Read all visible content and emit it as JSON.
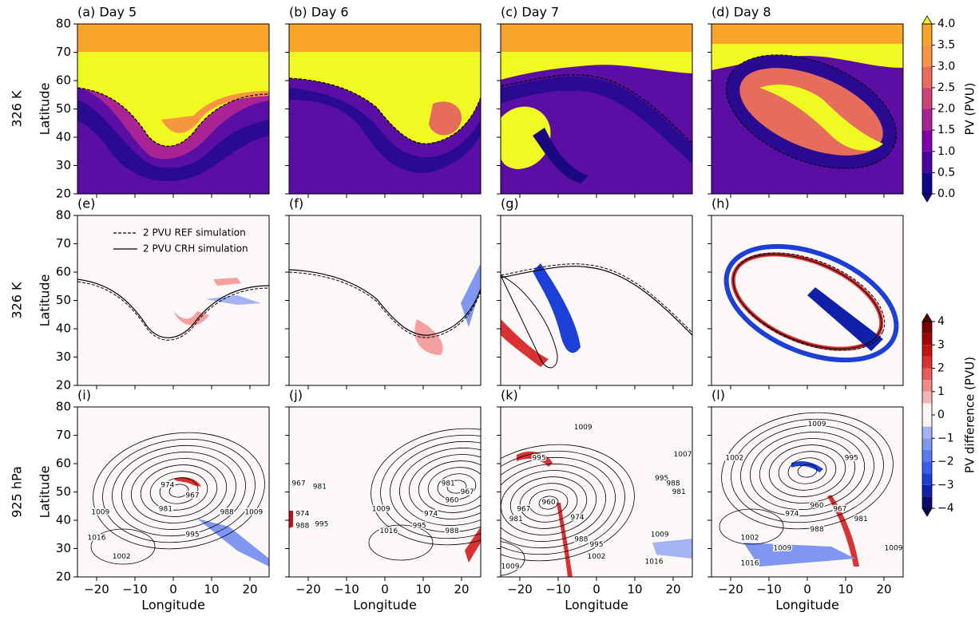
{
  "chart_data": [
    {
      "type": "contour",
      "title": "(a) Day 5",
      "ylabel": "Latitude",
      "xlim": [
        -25,
        25
      ],
      "ylim": [
        20,
        80
      ],
      "xticks": [
        {
          "value": -20,
          "label": "−20"
        },
        {
          "value": -10,
          "label": "−10"
        },
        0,
        10,
        20
      ],
      "yticks": [
        20,
        30,
        40,
        50,
        60,
        70,
        80
      ]
    },
    {
      "type": "contour",
      "title": "(b) Day 6",
      "xlim": [
        -25,
        25
      ],
      "ylim": [
        20,
        80
      ],
      "xticks": [
        {
          "value": -20,
          "label": "−20"
        },
        {
          "value": -10,
          "label": "−10"
        },
        0,
        10,
        20
      ],
      "yticks": [
        20,
        30,
        40,
        50,
        60,
        70,
        80
      ]
    },
    {
      "type": "contour",
      "title": "(c) Day 7",
      "xlim": [
        -25,
        25
      ],
      "ylim": [
        20,
        80
      ],
      "xticks": [
        {
          "value": -20,
          "label": "−20"
        },
        {
          "value": -10,
          "label": "−10"
        },
        0,
        10,
        20
      ],
      "yticks": [
        20,
        30,
        40,
        50,
        60,
        70,
        80
      ]
    },
    {
      "type": "contour",
      "title": "(d) Day 8",
      "xlim": [
        -25,
        25
      ],
      "ylim": [
        20,
        80
      ],
      "xticks": [
        {
          "value": -20,
          "label": "−20"
        },
        {
          "value": -10,
          "label": "−10"
        },
        0,
        10,
        20
      ],
      "yticks": [
        20,
        30,
        40,
        50,
        60,
        70,
        80
      ]
    },
    {
      "type": "contour",
      "title": "(e)",
      "ylabel": "Latitude",
      "xlim": [
        -25,
        25
      ],
      "ylim": [
        20,
        80
      ],
      "xticks": [
        {
          "value": -20,
          "label": "−20"
        },
        {
          "value": -10,
          "label": "−10"
        },
        0,
        10,
        20
      ],
      "yticks": [
        20,
        30,
        40,
        50,
        60,
        70,
        80
      ],
      "legend": [
        {
          "name": "2 PVU REF simulation",
          "style": "dashed"
        },
        {
          "name": "2 PVU CRH simulation",
          "style": "solid"
        }
      ]
    },
    {
      "type": "contour",
      "title": "(f)",
      "xlim": [
        -25,
        25
      ],
      "ylim": [
        20,
        80
      ],
      "xticks": [
        {
          "value": -20,
          "label": "−20"
        },
        {
          "value": -10,
          "label": "−10"
        },
        0,
        10,
        20
      ],
      "yticks": [
        20,
        30,
        40,
        50,
        60,
        70,
        80
      ]
    },
    {
      "type": "contour",
      "title": "(g)",
      "xlim": [
        -25,
        25
      ],
      "ylim": [
        20,
        80
      ],
      "xticks": [
        {
          "value": -20,
          "label": "−20"
        },
        {
          "value": -10,
          "label": "−10"
        },
        0,
        10,
        20
      ],
      "yticks": [
        20,
        30,
        40,
        50,
        60,
        70,
        80
      ]
    },
    {
      "type": "contour",
      "title": "(h)",
      "xlim": [
        -25,
        25
      ],
      "ylim": [
        20,
        80
      ],
      "xticks": [
        {
          "value": -20,
          "label": "−20"
        },
        {
          "value": -10,
          "label": "−10"
        },
        0,
        10,
        20
      ],
      "yticks": [
        20,
        30,
        40,
        50,
        60,
        70,
        80
      ]
    },
    {
      "type": "contour",
      "title": "(i)",
      "ylabel": "Latitude",
      "xlabel": "Longitude",
      "xlim": [
        -25,
        25
      ],
      "ylim": [
        20,
        80
      ],
      "xticks": [
        {
          "value": -20,
          "label": "−20"
        },
        {
          "value": -10,
          "label": "−10"
        },
        0,
        10,
        20
      ],
      "yticks": [
        20,
        30,
        40,
        50,
        60,
        70,
        80
      ],
      "contour_labels": [
        974,
        967,
        981,
        988,
        1009,
        1009,
        1016,
        995,
        1002
      ]
    },
    {
      "type": "contour",
      "title": "(j)",
      "xlabel": "Longitude",
      "xlim": [
        -25,
        25
      ],
      "ylim": [
        20,
        80
      ],
      "xticks": [
        {
          "value": -20,
          "label": "−20"
        },
        {
          "value": -10,
          "label": "−10"
        },
        0,
        10,
        20
      ],
      "yticks": [
        20,
        30,
        40,
        50,
        60,
        70,
        80
      ],
      "contour_labels": [
        981,
        967,
        960,
        974,
        995,
        988,
        1009,
        1016,
        967,
        981,
        974,
        988,
        995
      ]
    },
    {
      "type": "contour",
      "title": "(k)",
      "xlabel": "Longitude",
      "xlim": [
        -25,
        25
      ],
      "ylim": [
        20,
        80
      ],
      "xticks": [
        {
          "value": -20,
          "label": "−20"
        },
        {
          "value": -10,
          "label": "−10"
        },
        0,
        10,
        20
      ],
      "yticks": [
        20,
        30,
        40,
        50,
        60,
        70,
        80
      ],
      "contour_labels": [
        1009,
        995,
        960,
        967,
        981,
        974,
        988,
        995,
        1002,
        1009,
        1016,
        1009,
        1007,
        995,
        988,
        981
      ]
    },
    {
      "type": "contour",
      "title": "(l)",
      "xlabel": "Longitude",
      "xlim": [
        -25,
        25
      ],
      "ylim": [
        20,
        80
      ],
      "xticks": [
        {
          "value": -20,
          "label": "−20"
        },
        {
          "value": -10,
          "label": "−10"
        },
        0,
        10,
        20
      ],
      "yticks": [
        20,
        30,
        40,
        50,
        60,
        70,
        80
      ],
      "contour_labels": [
        1009,
        1002,
        995,
        960,
        967,
        974,
        981,
        988,
        1002,
        1009,
        1016,
        1009
      ]
    }
  ],
  "row_labels": [
    "326 K",
    "326 K",
    "925 hPa"
  ],
  "colorbars": [
    {
      "label": "PV (PVU)",
      "levels": [
        0,
        0.5,
        1,
        1.5,
        2,
        2.5,
        3,
        3.5,
        4
      ],
      "colors": [
        "#0d0887",
        "#4c02a1",
        "#7e03a8",
        "#a92395",
        "#cc4778",
        "#e66c5c",
        "#f89540",
        "#f9a52c"
      ],
      "under_color": "#0d0887",
      "over_color": "#f0f921",
      "ticks": [
        {
          "value": 0,
          "label": "0.0"
        },
        {
          "value": 0.5,
          "label": "0.5"
        },
        {
          "value": 1,
          "label": "1.0"
        },
        {
          "value": 1.5,
          "label": "1.5"
        },
        {
          "value": 2,
          "label": "2.0"
        },
        {
          "value": 2.5,
          "label": "2.5"
        },
        {
          "value": 3,
          "label": "3.0"
        },
        {
          "value": 3.5,
          "label": "3.5"
        },
        {
          "value": 4,
          "label": "4.0"
        }
      ]
    },
    {
      "label": "PV difference (PVU)",
      "levels": [
        -4,
        -3.5,
        -3,
        -2.5,
        -2,
        -1.5,
        -1,
        -0.5,
        0,
        0.5,
        1,
        1.5,
        2,
        2.5,
        3,
        3.5,
        4
      ],
      "colors": [
        "#0b0b6e",
        "#1020a8",
        "#1c3fd6",
        "#3b5ee8",
        "#5c7bed",
        "#7f97f0",
        "#a3b3f3",
        "#fbf6f6",
        "#fbf6f6",
        "#f6b4b4",
        "#f08a8a",
        "#e85c5c",
        "#d83232",
        "#c01414",
        "#a00606",
        "#7a0000"
      ],
      "under_color": "#050550",
      "over_color": "#5a0000",
      "ticks": [
        {
          "value": -4,
          "label": "−4"
        },
        {
          "value": -3,
          "label": "−3"
        },
        {
          "value": -2,
          "label": "−2"
        },
        {
          "value": -1,
          "label": "−1"
        },
        0,
        1,
        2,
        3,
        4
      ]
    }
  ]
}
